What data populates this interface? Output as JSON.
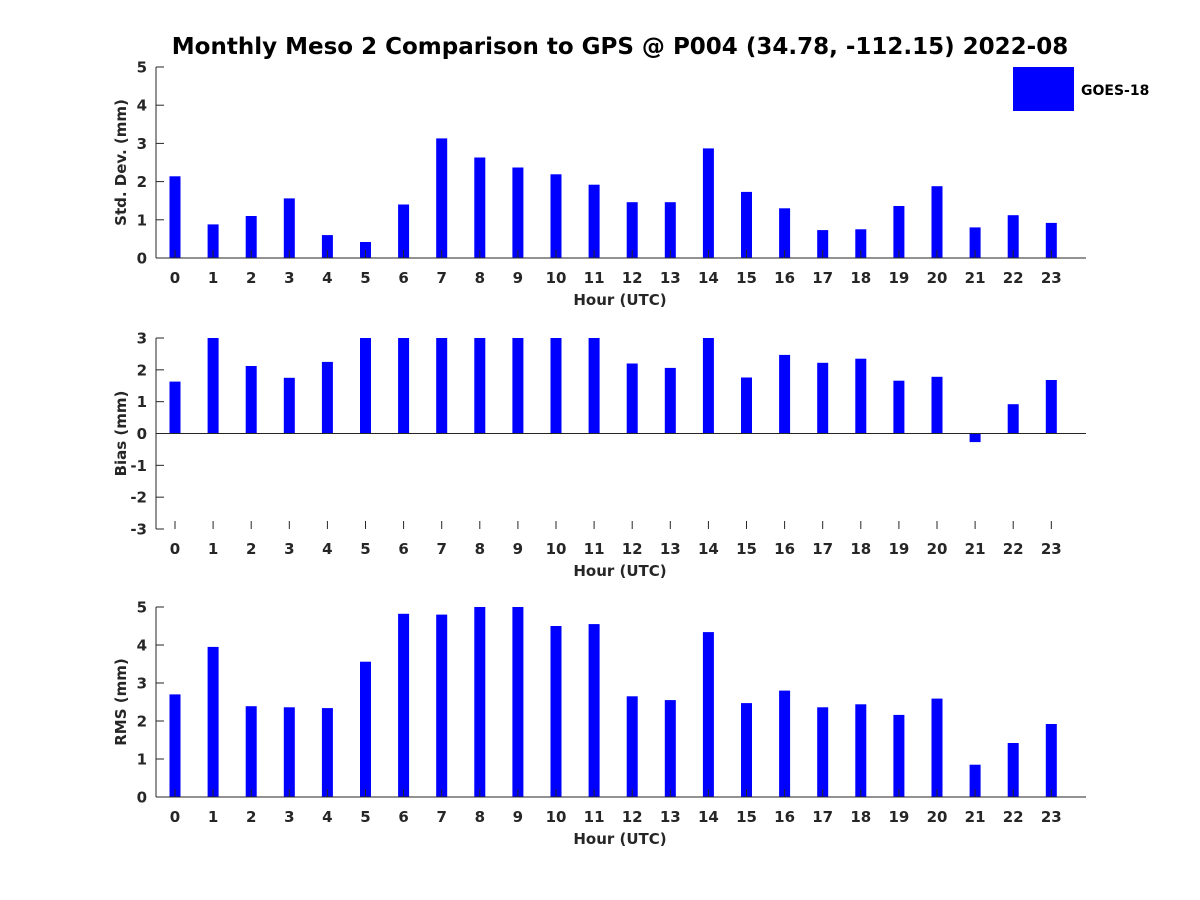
{
  "colors": {
    "bar": "#0000ff",
    "axis": "#262626",
    "background": "#ffffff"
  },
  "chart_data": [
    {
      "type": "bar",
      "title": "Monthly Meso 2 Comparison to GPS @ P004 (34.78, -112.15) 2022-08",
      "legend": {
        "label": "GOES-18",
        "placement": "top-right outside"
      },
      "xlabel": "Hour (UTC)",
      "ylabel": "Std. Dev. (mm)",
      "ylim": [
        0,
        5
      ],
      "yticks": [
        "0",
        "1",
        "2",
        "3",
        "4",
        "5"
      ],
      "categories": [
        "0",
        "1",
        "2",
        "3",
        "4",
        "5",
        "6",
        "7",
        "8",
        "9",
        "10",
        "11",
        "12",
        "13",
        "14",
        "15",
        "16",
        "17",
        "18",
        "19",
        "20",
        "21",
        "22",
        "23"
      ],
      "series": [
        {
          "name": "GOES-18",
          "values": [
            2.14,
            0.88,
            1.1,
            1.56,
            0.6,
            0.42,
            1.4,
            3.13,
            2.63,
            2.37,
            2.19,
            1.92,
            1.46,
            1.46,
            2.87,
            1.73,
            1.3,
            0.73,
            0.75,
            1.36,
            1.88,
            0.8,
            1.12,
            0.92
          ]
        }
      ],
      "grid": false
    },
    {
      "type": "bar",
      "xlabel": "Hour (UTC)",
      "ylabel": "Bias (mm)",
      "ylim": [
        -3,
        3
      ],
      "yticks": [
        "-3",
        "-2",
        "-1",
        "0",
        "1",
        "2",
        "3"
      ],
      "categories": [
        "0",
        "1",
        "2",
        "3",
        "4",
        "5",
        "6",
        "7",
        "8",
        "9",
        "10",
        "11",
        "12",
        "13",
        "14",
        "15",
        "16",
        "17",
        "18",
        "19",
        "20",
        "21",
        "22",
        "23"
      ],
      "series": [
        {
          "name": "GOES-18",
          "values": [
            1.63,
            3.0,
            2.12,
            1.75,
            2.25,
            3.0,
            3.0,
            3.0,
            3.0,
            3.0,
            3.0,
            3.0,
            2.2,
            2.06,
            3.0,
            1.76,
            2.47,
            2.22,
            2.35,
            1.66,
            1.78,
            -0.27,
            0.92,
            1.68
          ]
        }
      ],
      "grid": false
    },
    {
      "type": "bar",
      "xlabel": "Hour (UTC)",
      "ylabel": "RMS (mm)",
      "ylim": [
        0,
        5
      ],
      "yticks": [
        "0",
        "1",
        "2",
        "3",
        "4",
        "5"
      ],
      "categories": [
        "0",
        "1",
        "2",
        "3",
        "4",
        "5",
        "6",
        "7",
        "8",
        "9",
        "10",
        "11",
        "12",
        "13",
        "14",
        "15",
        "16",
        "17",
        "18",
        "19",
        "20",
        "21",
        "22",
        "23"
      ],
      "series": [
        {
          "name": "GOES-18",
          "values": [
            2.7,
            3.95,
            2.39,
            2.36,
            2.34,
            3.56,
            4.82,
            4.8,
            5.0,
            5.0,
            4.5,
            4.55,
            2.65,
            2.55,
            4.34,
            2.47,
            2.8,
            2.36,
            2.44,
            2.16,
            2.59,
            0.85,
            1.42,
            1.92
          ]
        }
      ],
      "grid": false
    }
  ]
}
